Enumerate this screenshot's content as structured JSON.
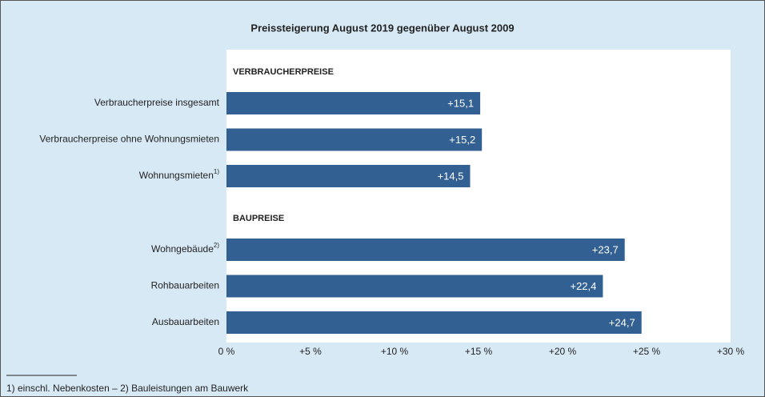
{
  "chart_data": {
    "type": "bar",
    "orientation": "horizontal",
    "title": "Preissteigerung August 2019 gegenüber August 2009",
    "groups": [
      {
        "label": "VERBRAUCHERPREISE",
        "categories": [
          "Verbraucherpreise insgesamt",
          "Verbraucherpreise ohne Wohnungsmieten",
          {
            "text": "Wohnungsmieten",
            "note": "1)"
          }
        ],
        "values": [
          15.1,
          15.2,
          14.5
        ],
        "value_labels": [
          "+15,1",
          "+15,2",
          "+14,5"
        ]
      },
      {
        "label": "BAUPREISE",
        "categories": [
          {
            "text": "Wohngebäude",
            "note": "2)"
          },
          "Rohbauarbeiten",
          "Ausbauarbeiten"
        ],
        "values": [
          23.7,
          22.4,
          24.7
        ],
        "value_labels": [
          "+23,7",
          "+22,4",
          "+24,7"
        ]
      }
    ],
    "color": "#336092",
    "xlim": [
      0,
      30
    ],
    "xticks": [
      {
        "value": 0,
        "label": "0 %"
      },
      {
        "value": 5,
        "label": "+5 %"
      },
      {
        "value": 10,
        "label": "+10 %"
      },
      {
        "value": 15,
        "label": "+15 %"
      },
      {
        "value": 20,
        "label": "+20 %"
      },
      {
        "value": 25,
        "label": "+25 %"
      },
      {
        "value": 30,
        "label": "+30 %"
      }
    ],
    "grid": false,
    "footnote": "1) einschl. Nebenkosten – 2) Bauleistungen am Bauwerk"
  }
}
